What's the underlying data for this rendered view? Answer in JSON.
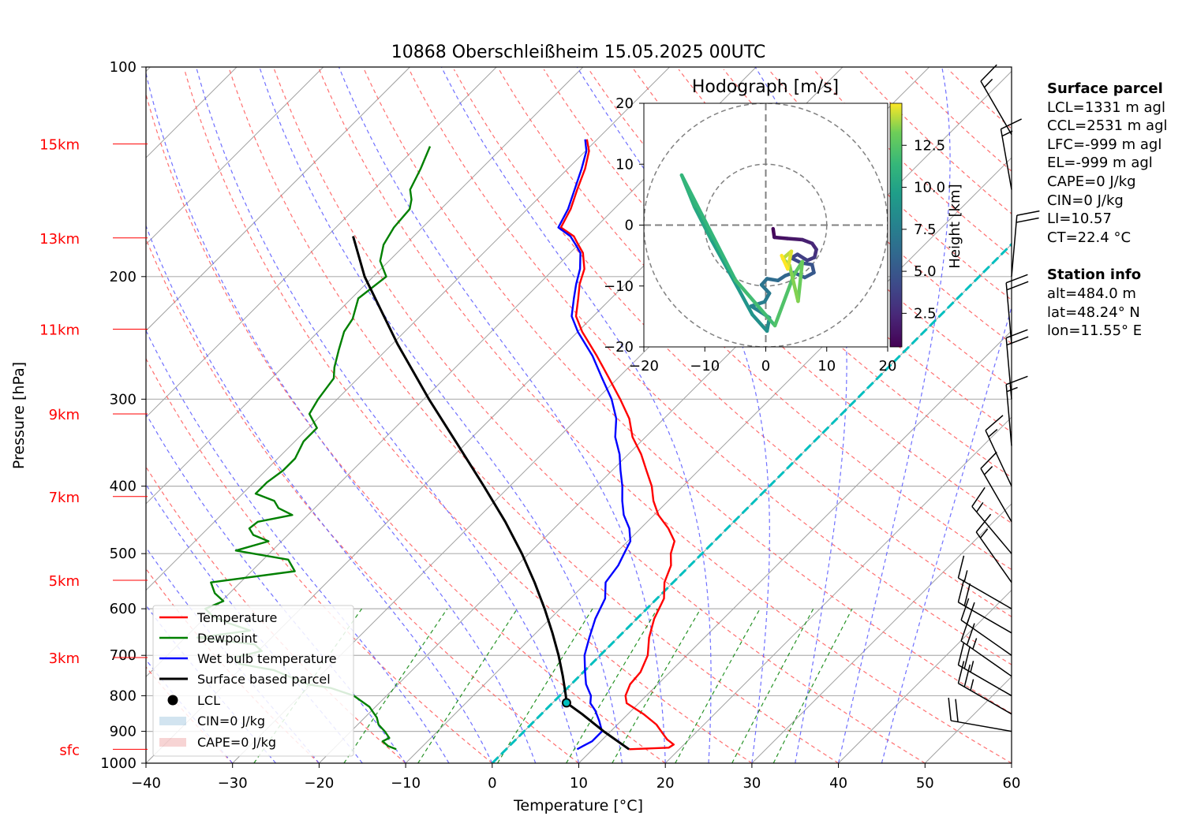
{
  "chart_data": {
    "type": "skew-t",
    "title": "10868 Oberschleißheim 15.05.2025 00UTC",
    "xlabel": "Temperature [°C]",
    "ylabel": "Pressure [hPa]",
    "xlim": [
      -40,
      60
    ],
    "ylim": [
      1000,
      100
    ],
    "x_scale": "linear (skewed 45°)",
    "y_scale": "log",
    "grid": true,
    "x_ticks": [
      "−40",
      "−30",
      "−20",
      "−10",
      "0",
      "10",
      "20",
      "30",
      "40",
      "50",
      "60"
    ],
    "y_ticks": [
      {
        "p": 100,
        "label": "100"
      },
      {
        "p": 200,
        "label": "200"
      },
      {
        "p": 300,
        "label": "300"
      },
      {
        "p": 400,
        "label": "400"
      },
      {
        "p": 500,
        "label": "500"
      },
      {
        "p": 600,
        "label": "600"
      },
      {
        "p": 700,
        "label": "700"
      },
      {
        "p": 800,
        "label": "800"
      },
      {
        "p": 900,
        "label": "900"
      },
      {
        "p": 1000,
        "label": "1000"
      }
    ],
    "height_markers": [
      {
        "p": 955,
        "label": "sfc"
      },
      {
        "p": 705,
        "label": "3km"
      },
      {
        "p": 546,
        "label": "5km"
      },
      {
        "p": 414,
        "label": "7km"
      },
      {
        "p": 315,
        "label": "9km"
      },
      {
        "p": 238,
        "label": "11km"
      },
      {
        "p": 176,
        "label": "13km"
      },
      {
        "p": 129,
        "label": "15km"
      }
    ],
    "series": [
      {
        "name": "Temperature",
        "color": "#ff0000",
        "points": [
          [
            955,
            14.2
          ],
          [
            950,
            18.6
          ],
          [
            940,
            18.8
          ],
          [
            925,
            17.5
          ],
          [
            910,
            16.5
          ],
          [
            880,
            14.5
          ],
          [
            850,
            11.8
          ],
          [
            820,
            8.6
          ],
          [
            800,
            7.6
          ],
          [
            770,
            6.8
          ],
          [
            740,
            6.6
          ],
          [
            700,
            5.5
          ],
          [
            660,
            3.6
          ],
          [
            620,
            2.0
          ],
          [
            580,
            0.8
          ],
          [
            550,
            -1.0
          ],
          [
            520,
            -2.2
          ],
          [
            500,
            -3.6
          ],
          [
            480,
            -4.6
          ],
          [
            460,
            -6.8
          ],
          [
            440,
            -9.5
          ],
          [
            420,
            -11.7
          ],
          [
            400,
            -13.6
          ],
          [
            380,
            -16.0
          ],
          [
            360,
            -18.5
          ],
          [
            340,
            -21.5
          ],
          [
            320,
            -24.0
          ],
          [
            300,
            -27.3
          ],
          [
            280,
            -31.0
          ],
          [
            260,
            -35.0
          ],
          [
            240,
            -39.5
          ],
          [
            228,
            -42.0
          ],
          [
            215,
            -43.8
          ],
          [
            205,
            -45.3
          ],
          [
            195,
            -46.5
          ],
          [
            185,
            -48.5
          ],
          [
            180,
            -50.0
          ],
          [
            175,
            -51.5
          ],
          [
            170,
            -54.0
          ],
          [
            160,
            -55.0
          ],
          [
            150,
            -56.5
          ],
          [
            140,
            -58.0
          ],
          [
            132,
            -59.6
          ],
          [
            127,
            -61.2
          ]
        ]
      },
      {
        "name": "Dewpoint",
        "color": "#008000",
        "points": [
          [
            955,
            -12.7
          ],
          [
            945,
            -14.0
          ],
          [
            930,
            -15.2
          ],
          [
            920,
            -14.8
          ],
          [
            900,
            -16.1
          ],
          [
            880,
            -17.6
          ],
          [
            860,
            -18.6
          ],
          [
            830,
            -20.7
          ],
          [
            800,
            -23.8
          ],
          [
            780,
            -27.3
          ],
          [
            770,
            -30.5
          ],
          [
            750,
            -33.6
          ],
          [
            735,
            -36.0
          ],
          [
            720,
            -40.7
          ],
          [
            705,
            -42.0
          ],
          [
            690,
            -39.6
          ],
          [
            675,
            -41.2
          ],
          [
            660,
            -48.6
          ],
          [
            645,
            -43.3
          ],
          [
            630,
            -46.5
          ],
          [
            615,
            -49.3
          ],
          [
            600,
            -51.0
          ],
          [
            585,
            -49.8
          ],
          [
            570,
            -51.7
          ],
          [
            550,
            -53.4
          ],
          [
            530,
            -45.0
          ],
          [
            510,
            -47.1
          ],
          [
            495,
            -54.2
          ],
          [
            480,
            -51.5
          ],
          [
            470,
            -54.0
          ],
          [
            460,
            -55.2
          ],
          [
            450,
            -55.0
          ],
          [
            440,
            -51.8
          ],
          [
            430,
            -54.2
          ],
          [
            420,
            -55.5
          ],
          [
            410,
            -58.5
          ],
          [
            395,
            -58.5
          ],
          [
            380,
            -58.0
          ],
          [
            365,
            -58.0
          ],
          [
            345,
            -59.0
          ],
          [
            330,
            -59.0
          ],
          [
            315,
            -61.5
          ],
          [
            300,
            -62.2
          ],
          [
            280,
            -62.8
          ],
          [
            270,
            -64.0
          ],
          [
            255,
            -65.5
          ],
          [
            240,
            -67.0
          ],
          [
            230,
            -67.5
          ],
          [
            215,
            -69.2
          ],
          [
            200,
            -68.5
          ],
          [
            190,
            -71.0
          ],
          [
            180,
            -72.5
          ],
          [
            170,
            -73.3
          ],
          [
            160,
            -73.6
          ],
          [
            155,
            -74.5
          ],
          [
            150,
            -75.8
          ],
          [
            140,
            -77.0
          ],
          [
            130,
            -78.5
          ]
        ]
      },
      {
        "name": "Wet bulb temperature",
        "color": "#0000ff",
        "points": [
          [
            955,
            8.2
          ],
          [
            945,
            8.5
          ],
          [
            930,
            9.0
          ],
          [
            900,
            9.0
          ],
          [
            870,
            7.5
          ],
          [
            840,
            5.8
          ],
          [
            820,
            4.4
          ],
          [
            800,
            3.6
          ],
          [
            770,
            1.7
          ],
          [
            740,
            0.2
          ],
          [
            700,
            -1.8
          ],
          [
            660,
            -3.3
          ],
          [
            620,
            -4.8
          ],
          [
            580,
            -6.0
          ],
          [
            550,
            -7.8
          ],
          [
            520,
            -8.3
          ],
          [
            500,
            -9.0
          ],
          [
            480,
            -9.7
          ],
          [
            460,
            -11.3
          ],
          [
            440,
            -13.5
          ],
          [
            420,
            -15.3
          ],
          [
            400,
            -17.0
          ],
          [
            380,
            -19.0
          ],
          [
            360,
            -21.0
          ],
          [
            340,
            -23.5
          ],
          [
            320,
            -25.5
          ],
          [
            300,
            -28.3
          ],
          [
            280,
            -31.8
          ],
          [
            260,
            -35.5
          ],
          [
            240,
            -40.0
          ],
          [
            228,
            -42.5
          ],
          [
            215,
            -44.3
          ],
          [
            205,
            -45.7
          ],
          [
            195,
            -47.0
          ],
          [
            185,
            -48.8
          ],
          [
            180,
            -50.3
          ],
          [
            175,
            -51.9
          ],
          [
            170,
            -54.3
          ],
          [
            160,
            -55.3
          ],
          [
            150,
            -56.8
          ],
          [
            140,
            -58.4
          ],
          [
            132,
            -59.9
          ],
          [
            127,
            -61.4
          ]
        ]
      },
      {
        "name": "Surface based parcel",
        "color": "#000000",
        "points": [
          [
            955,
            14.2
          ],
          [
            900,
            9.2
          ],
          [
            850,
            4.7
          ],
          [
            819,
            1.6
          ],
          [
            800,
            0.7
          ],
          [
            750,
            -1.9
          ],
          [
            700,
            -4.8
          ],
          [
            650,
            -8.1
          ],
          [
            600,
            -11.8
          ],
          [
            550,
            -16.0
          ],
          [
            500,
            -20.8
          ],
          [
            450,
            -26.4
          ],
          [
            400,
            -33.0
          ],
          [
            350,
            -40.6
          ],
          [
            300,
            -49.4
          ],
          [
            250,
            -59.4
          ],
          [
            200,
            -71.0
          ],
          [
            175,
            -77.0
          ]
        ]
      }
    ],
    "lcl": {
      "name": "LCL",
      "p": 819,
      "t": 1.6
    },
    "cin_label": "CIN=0 J/kg",
    "cape_label": "CAPE=0 J/kg",
    "zero_isotherm_color": "#00bfbf",
    "hodograph": {
      "title": "Hodograph [m/s]",
      "xlim": [
        -20,
        20
      ],
      "ylim": [
        -20,
        20
      ],
      "ticks": [
        -20,
        -10,
        0,
        10,
        20
      ],
      "colorbar_label": "Height [km]",
      "colorbar_ticks": [
        "2.5",
        "5.0",
        "7.5",
        "10.0",
        "12.5"
      ],
      "colorbar_range": [
        0.5,
        15
      ],
      "trace": [
        [
          1.2,
          -0.6,
          0.5
        ],
        [
          1.4,
          -2.0,
          0.8
        ],
        [
          3.5,
          -2.2,
          1.2
        ],
        [
          6.0,
          -2.4,
          1.5
        ],
        [
          7.6,
          -3.0,
          2.0
        ],
        [
          8.3,
          -4.0,
          2.4
        ],
        [
          8.0,
          -5.3,
          2.8
        ],
        [
          6.8,
          -5.8,
          3.2
        ],
        [
          5.2,
          -4.8,
          3.6
        ],
        [
          4.2,
          -5.4,
          3.9
        ],
        [
          5.8,
          -6.2,
          4.2
        ],
        [
          7.6,
          -6.5,
          4.5
        ],
        [
          7.9,
          -7.8,
          4.8
        ],
        [
          6.4,
          -8.6,
          5.1
        ],
        [
          4.6,
          -7.8,
          5.4
        ],
        [
          3.2,
          -8.3,
          5.7
        ],
        [
          2.0,
          -9.1,
          6.0
        ],
        [
          0.2,
          -8.8,
          6.3
        ],
        [
          -0.7,
          -9.8,
          6.6
        ],
        [
          0.6,
          -11.2,
          6.9
        ],
        [
          -0.2,
          -12.6,
          7.2
        ],
        [
          -2.4,
          -13.3,
          7.5
        ],
        [
          -0.8,
          -14.3,
          7.8
        ],
        [
          0.6,
          -15.2,
          8.1
        ],
        [
          0.2,
          -17.4,
          8.4
        ],
        [
          -2.2,
          -14.7,
          8.7
        ],
        [
          -4.2,
          -11.0,
          9.0
        ],
        [
          -6.4,
          -7.0,
          9.4
        ],
        [
          -9.0,
          -2.3,
          9.8
        ],
        [
          -11.7,
          3.0,
          10.3
        ],
        [
          -13.8,
          8.2,
          10.8
        ],
        [
          -5.0,
          -9.0,
          11.3
        ],
        [
          1.5,
          -16.5,
          11.8
        ],
        [
          4.6,
          -8.2,
          12.3
        ],
        [
          6.0,
          -6.0,
          12.7
        ],
        [
          5.3,
          -12.5,
          13.1
        ],
        [
          3.9,
          -6.6,
          13.5
        ],
        [
          2.8,
          -5.5,
          13.8
        ],
        [
          4.2,
          -4.3,
          14.2
        ],
        [
          3.6,
          -7.2,
          14.6
        ],
        [
          2.6,
          -5.0,
          15.0
        ]
      ]
    },
    "wind_barbs": [
      {
        "p": 900,
        "dir": 280,
        "spd": 20
      },
      {
        "p": 850,
        "dir": 300,
        "spd": 25
      },
      {
        "p": 800,
        "dir": 300,
        "spd": 25
      },
      {
        "p": 750,
        "dir": 305,
        "spd": 25
      },
      {
        "p": 700,
        "dir": 305,
        "spd": 20
      },
      {
        "p": 650,
        "dir": 300,
        "spd": 20
      },
      {
        "p": 600,
        "dir": 300,
        "spd": 15
      },
      {
        "p": 550,
        "dir": 325,
        "spd": 15
      },
      {
        "p": 500,
        "dir": 320,
        "spd": 15
      },
      {
        "p": 450,
        "dir": 330,
        "spd": 15
      },
      {
        "p": 400,
        "dir": 335,
        "spd": 15
      },
      {
        "p": 350,
        "dir": 355,
        "spd": 15
      },
      {
        "p": 300,
        "dir": 355,
        "spd": 20
      },
      {
        "p": 250,
        "dir": 355,
        "spd": 20
      },
      {
        "p": 200,
        "dir": 5,
        "spd": 20
      },
      {
        "p": 150,
        "dir": 350,
        "spd": 15
      },
      {
        "p": 125,
        "dir": 330,
        "spd": 15
      }
    ]
  },
  "legend": {
    "temperature": "Temperature",
    "dewpoint": "Dewpoint",
    "wetbulb": "Wet bulb temperature",
    "parcel": "Surface based parcel",
    "lcl": "LCL",
    "cin": "CIN=0 J/kg",
    "cape": "CAPE=0 J/kg"
  },
  "surface_parcel": {
    "heading": "Surface parcel",
    "lcl": "LCL=1331 m agl",
    "ccl": "CCL=2531 m agl",
    "lfc": "LFC=-999 m agl",
    "el": "EL=-999 m agl",
    "cape": "CAPE=0 J/kg",
    "cin": "CIN=0 J/kg",
    "li": "LI=10.57",
    "ct": "CT=22.4 °C"
  },
  "station_info": {
    "heading": "Station info",
    "alt": "alt=484.0 m",
    "lat": "lat=48.24° N",
    "lon": "lon=11.55° E"
  }
}
